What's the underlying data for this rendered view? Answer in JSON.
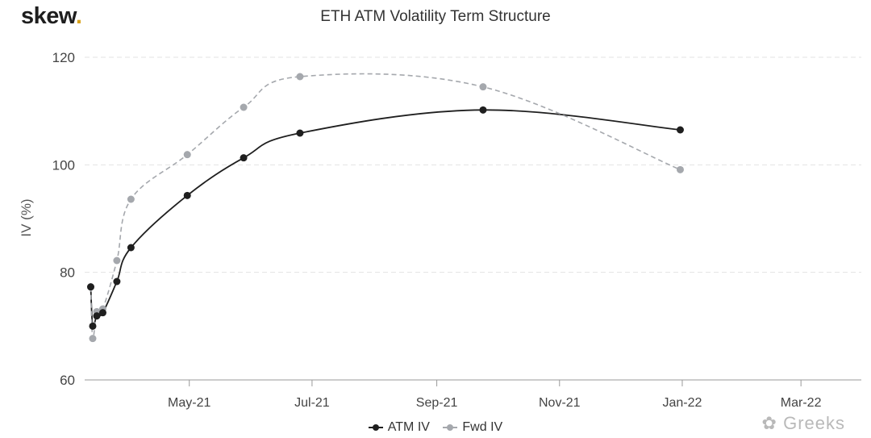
{
  "brand": {
    "name": "skew",
    "dot": "."
  },
  "watermark": "Greeks",
  "chart_data": {
    "type": "line",
    "title": "ETH ATM Volatility Term Structure",
    "ylabel": "IV (%)",
    "xlabel": "",
    "ylim": [
      60,
      120
    ],
    "yticks": [
      60,
      80,
      100,
      120
    ],
    "xlim": [
      "2021-03-10",
      "2022-03-31"
    ],
    "xticks": [
      {
        "date": "2021-05-01",
        "label": "May-21"
      },
      {
        "date": "2021-07-01",
        "label": "Jul-21"
      },
      {
        "date": "2021-09-01",
        "label": "Sep-21"
      },
      {
        "date": "2021-11-01",
        "label": "Nov-21"
      },
      {
        "date": "2022-01-01",
        "label": "Jan-22"
      },
      {
        "date": "2022-03-01",
        "label": "Mar-22"
      }
    ],
    "grid": true,
    "legend_position": "bottom",
    "series": [
      {
        "name": "ATM IV",
        "color": "#1f1f1f",
        "dash": false,
        "points": [
          [
            "2021-03-13",
            77.3
          ],
          [
            "2021-03-14",
            70.0
          ],
          [
            "2021-03-16",
            71.9
          ],
          [
            "2021-03-19",
            72.5
          ],
          [
            "2021-03-26",
            78.3
          ],
          [
            "2021-04-02",
            84.6
          ],
          [
            "2021-04-30",
            94.3
          ],
          [
            "2021-05-28",
            101.3
          ],
          [
            "2021-06-25",
            105.9
          ],
          [
            "2021-09-24",
            110.2
          ],
          [
            "2021-12-31",
            106.5
          ]
        ]
      },
      {
        "name": "Fwd IV",
        "color": "#a5a8ad",
        "dash": true,
        "points": [
          [
            "2021-03-13",
            77.3
          ],
          [
            "2021-03-14",
            67.7
          ],
          [
            "2021-03-16",
            72.7
          ],
          [
            "2021-03-19",
            73.2
          ],
          [
            "2021-03-26",
            82.2
          ],
          [
            "2021-04-02",
            93.6
          ],
          [
            "2021-04-30",
            101.9
          ],
          [
            "2021-05-28",
            110.7
          ],
          [
            "2021-06-25",
            116.4
          ],
          [
            "2021-09-24",
            114.5
          ],
          [
            "2021-12-31",
            99.1
          ]
        ]
      }
    ]
  }
}
